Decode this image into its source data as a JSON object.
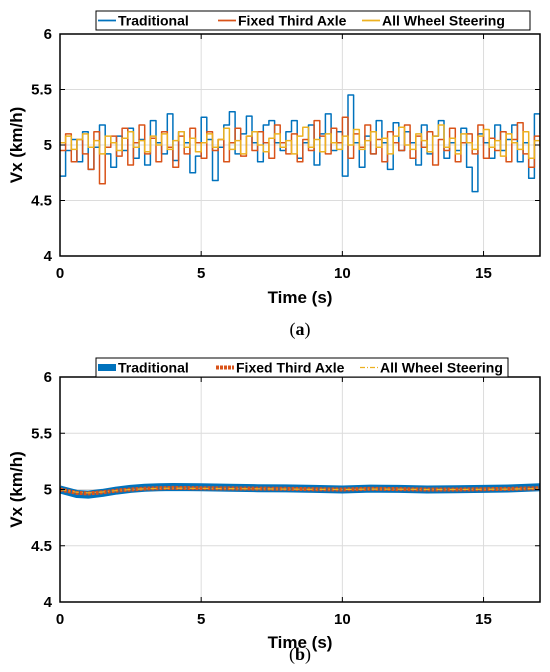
{
  "colors": {
    "traditional": "#0072BD",
    "fixed_third_axle": "#D95319",
    "all_wheel_steering": "#EDB120",
    "grid": "#dcdcdc"
  },
  "chart_data": [
    {
      "id": "a",
      "type": "line",
      "caption_open": "(",
      "caption_letter": "a",
      "caption_close": ")",
      "xlabel": "Time (s)",
      "ylabel": "Vx (km/h)",
      "xlim": [
        0,
        17
      ],
      "ylim": [
        4,
        6
      ],
      "xticks": [
        0,
        5,
        10,
        15
      ],
      "yticks": [
        4,
        4.5,
        5,
        5.5,
        6
      ],
      "grid": true,
      "legend_position": "top",
      "series": [
        {
          "name": "Traditional",
          "color_key": "traditional",
          "step": true,
          "x": [
            0,
            0.2,
            0.4,
            0.6,
            0.8,
            1.0,
            1.2,
            1.4,
            1.6,
            1.8,
            2.0,
            2.2,
            2.4,
            2.6,
            2.8,
            3.0,
            3.2,
            3.4,
            3.6,
            3.8,
            4.0,
            4.2,
            4.4,
            4.6,
            4.8,
            5.0,
            5.2,
            5.4,
            5.6,
            5.8,
            6.0,
            6.2,
            6.4,
            6.6,
            6.8,
            7.0,
            7.2,
            7.4,
            7.6,
            7.8,
            8.0,
            8.2,
            8.4,
            8.6,
            8.8,
            9.0,
            9.2,
            9.4,
            9.6,
            9.8,
            10.0,
            10.2,
            10.4,
            10.6,
            10.8,
            11.0,
            11.2,
            11.4,
            11.6,
            11.8,
            12.0,
            12.2,
            12.4,
            12.6,
            12.8,
            13.0,
            13.2,
            13.4,
            13.6,
            13.8,
            14.0,
            14.2,
            14.4,
            14.6,
            14.8,
            15.0,
            15.2,
            15.4,
            15.6,
            15.8,
            16.0,
            16.2,
            16.4,
            16.6,
            16.8,
            17.0
          ],
          "y": [
            4.72,
            4.95,
            5.05,
            4.85,
            5.12,
            4.78,
            4.98,
            5.18,
            4.92,
            4.8,
            5.08,
            4.95,
            5.15,
            4.88,
            5.05,
            4.82,
            5.22,
            5.02,
            4.92,
            5.28,
            4.86,
            5.12,
            5.02,
            4.75,
            4.9,
            5.25,
            5.05,
            4.68,
            4.98,
            5.18,
            5.3,
            4.92,
            5.1,
            5.26,
            5.02,
            4.85,
            5.18,
            5.22,
            5.02,
            4.95,
            5.12,
            5.22,
            4.88,
            5.02,
            5.18,
            4.82,
            5.1,
            5.28,
            4.95,
            5.12,
            4.72,
            5.45,
            5.02,
            4.8,
            5.08,
            4.92,
            5.22,
            5.02,
            4.78,
            5.2,
            4.95,
            5.12,
            5.02,
            4.82,
            5.18,
            4.92,
            5.08,
            5.22,
            4.88,
            5.02,
            4.95,
            5.15,
            4.8,
            4.58,
            5.1,
            5.02,
            4.88,
            5.18,
            4.95,
            5.05,
            5.18,
            4.85,
            5.02,
            4.7,
            5.28,
            5.1
          ]
        },
        {
          "name": "Fixed Third Axle",
          "color_key": "fixed_third_axle",
          "step": true,
          "x": [
            0,
            0.2,
            0.4,
            0.6,
            0.8,
            1.0,
            1.2,
            1.4,
            1.6,
            1.8,
            2.0,
            2.2,
            2.4,
            2.6,
            2.8,
            3.0,
            3.2,
            3.4,
            3.6,
            3.8,
            4.0,
            4.2,
            4.4,
            4.6,
            4.8,
            5.0,
            5.2,
            5.4,
            5.6,
            5.8,
            6.0,
            6.2,
            6.4,
            6.6,
            6.8,
            7.0,
            7.2,
            7.4,
            7.6,
            7.8,
            8.0,
            8.2,
            8.4,
            8.6,
            8.8,
            9.0,
            9.2,
            9.4,
            9.6,
            9.8,
            10.0,
            10.2,
            10.4,
            10.6,
            10.8,
            11.0,
            11.2,
            11.4,
            11.6,
            11.8,
            12.0,
            12.2,
            12.4,
            12.6,
            12.8,
            13.0,
            13.2,
            13.4,
            13.6,
            13.8,
            14.0,
            14.2,
            14.4,
            14.6,
            14.8,
            15.0,
            15.2,
            15.4,
            15.6,
            15.8,
            16.0,
            16.2,
            16.4,
            16.6,
            16.8,
            17.0
          ],
          "y": [
            4.95,
            5.1,
            4.85,
            5.05,
            4.92,
            4.78,
            5.12,
            4.65,
            4.98,
            5.08,
            4.9,
            5.15,
            4.82,
            5.02,
            5.18,
            4.92,
            5.06,
            4.85,
            5.12,
            4.98,
            4.8,
            5.08,
            4.92,
            5.15,
            5.02,
            4.88,
            5.12,
            4.95,
            5.05,
            4.85,
            5.02,
            5.15,
            4.9,
            5.08,
            4.95,
            5.12,
            5.02,
            4.88,
            5.18,
            5.02,
            4.92,
            5.1,
            4.85,
            5.05,
            4.95,
            5.22,
            5.08,
            4.92,
            5.15,
            5.02,
            5.25,
            4.88,
            5.1,
            4.98,
            5.18,
            4.92,
            5.05,
            4.85,
            5.12,
            5.02,
            4.95,
            5.18,
            4.88,
            5.08,
            4.98,
            5.12,
            4.82,
            5.05,
            4.95,
            5.15,
            4.85,
            5.02,
            5.1,
            4.92,
            5.18,
            4.88,
            5.06,
            4.95,
            5.12,
            4.85,
            5.05,
            5.2,
            4.92,
            4.8,
            5.08,
            4.98
          ]
        },
        {
          "name": "All Wheel Steering",
          "color_key": "all_wheel_steering",
          "step": true,
          "x": [
            0,
            0.2,
            0.4,
            0.6,
            0.8,
            1.0,
            1.2,
            1.4,
            1.6,
            1.8,
            2.0,
            2.2,
            2.4,
            2.6,
            2.8,
            3.0,
            3.2,
            3.4,
            3.6,
            3.8,
            4.0,
            4.2,
            4.4,
            4.6,
            4.8,
            5.0,
            5.2,
            5.4,
            5.6,
            5.8,
            6.0,
            6.2,
            6.4,
            6.6,
            6.8,
            7.0,
            7.2,
            7.4,
            7.6,
            7.8,
            8.0,
            8.2,
            8.4,
            8.6,
            8.8,
            9.0,
            9.2,
            9.4,
            9.6,
            9.8,
            10.0,
            10.2,
            10.4,
            10.6,
            10.8,
            11.0,
            11.2,
            11.4,
            11.6,
            11.8,
            12.0,
            12.2,
            12.4,
            12.6,
            12.8,
            13.0,
            13.2,
            13.4,
            13.6,
            13.8,
            14.0,
            14.2,
            14.4,
            14.6,
            14.8,
            15.0,
            15.2,
            15.4,
            15.6,
            15.8,
            16.0,
            16.2,
            16.4,
            16.6,
            16.8,
            17.0
          ],
          "y": [
            5.02,
            5.08,
            4.96,
            5.05,
            5.1,
            4.98,
            5.04,
            4.92,
            5.08,
            5.02,
            4.95,
            5.06,
            5.12,
            4.98,
            5.04,
            4.94,
            5.08,
            5.0,
            5.1,
            4.96,
            5.04,
            5.12,
            4.98,
            5.06,
            4.94,
            5.02,
            5.1,
            4.98,
            5.05,
            5.15,
            4.96,
            5.04,
            4.92,
            5.08,
            5.12,
            5.0,
            4.94,
            5.06,
            5.1,
            4.98,
            5.04,
            4.92,
            5.08,
            5.16,
            4.98,
            5.05,
            4.94,
            5.1,
            5.02,
            4.96,
            5.08,
            5.0,
            5.14,
            4.96,
            5.04,
            5.12,
            4.98,
            5.06,
            4.92,
            5.08,
            5.16,
            5.0,
            4.96,
            5.1,
            5.04,
            4.94,
            5.08,
            5.18,
            4.98,
            5.06,
            4.92,
            5.1,
            5.02,
            4.96,
            5.08,
            5.14,
            4.98,
            5.04,
            4.9,
            5.1,
            5.02,
            4.96,
            5.12,
            4.88,
            5.04,
            5.0
          ]
        }
      ]
    },
    {
      "id": "b",
      "type": "line",
      "caption_open": "(",
      "caption_letter": "b",
      "caption_close": ")",
      "xlabel": "Time (s)",
      "ylabel": "Vx (km/h)",
      "xlim": [
        0,
        17
      ],
      "ylim": [
        4,
        6
      ],
      "xticks": [
        0,
        5,
        10,
        15
      ],
      "yticks": [
        4,
        4.5,
        5,
        5.5,
        6
      ],
      "grid": true,
      "legend_position": "top",
      "series": [
        {
          "name": "Traditional",
          "color_key": "traditional",
          "line_style": "thick",
          "x": [
            0,
            0.3,
            0.6,
            1.0,
            1.5,
            2.0,
            2.5,
            3.0,
            3.5,
            4.0,
            5.0,
            6.0,
            7.0,
            8.0,
            9.0,
            10.0,
            11.0,
            12.0,
            13.0,
            14.0,
            15.0,
            16.0,
            17.0
          ],
          "y": [
            5.0,
            4.98,
            4.96,
            4.955,
            4.97,
            4.99,
            5.005,
            5.015,
            5.02,
            5.022,
            5.02,
            5.015,
            5.012,
            5.01,
            5.005,
            5.0,
            5.008,
            5.005,
            5.0,
            5.002,
            5.005,
            5.01,
            5.02
          ]
        },
        {
          "name": "Fixed Third Axle",
          "color_key": "fixed_third_axle",
          "line_style": "dotted-thick",
          "x": [
            0,
            0.3,
            0.6,
            1.0,
            1.5,
            2.0,
            2.5,
            3.0,
            3.5,
            4.0,
            5.0,
            6.0,
            7.0,
            8.0,
            9.0,
            10.0,
            11.0,
            12.0,
            13.0,
            14.0,
            15.0,
            16.0,
            17.0
          ],
          "y": [
            5.0,
            4.985,
            4.97,
            4.965,
            4.975,
            4.99,
            5.0,
            5.008,
            5.012,
            5.014,
            5.012,
            5.01,
            5.008,
            5.006,
            5.003,
            5.0,
            5.006,
            5.004,
            5.0,
            5.0,
            5.003,
            5.006,
            5.012
          ]
        },
        {
          "name": "All Wheel Steering",
          "color_key": "all_wheel_steering",
          "line_style": "dashdot",
          "x": [
            0,
            0.3,
            0.6,
            1.0,
            1.5,
            2.0,
            2.5,
            3.0,
            3.5,
            4.0,
            5.0,
            6.0,
            7.0,
            8.0,
            9.0,
            10.0,
            11.0,
            12.0,
            13.0,
            14.0,
            15.0,
            16.0,
            17.0
          ],
          "y": [
            5.0,
            4.988,
            4.975,
            4.97,
            4.978,
            4.99,
            5.0,
            5.006,
            5.01,
            5.012,
            5.01,
            5.008,
            5.006,
            5.004,
            5.002,
            5.0,
            5.004,
            5.003,
            5.0,
            5.0,
            5.002,
            5.004,
            5.01
          ]
        }
      ]
    }
  ]
}
